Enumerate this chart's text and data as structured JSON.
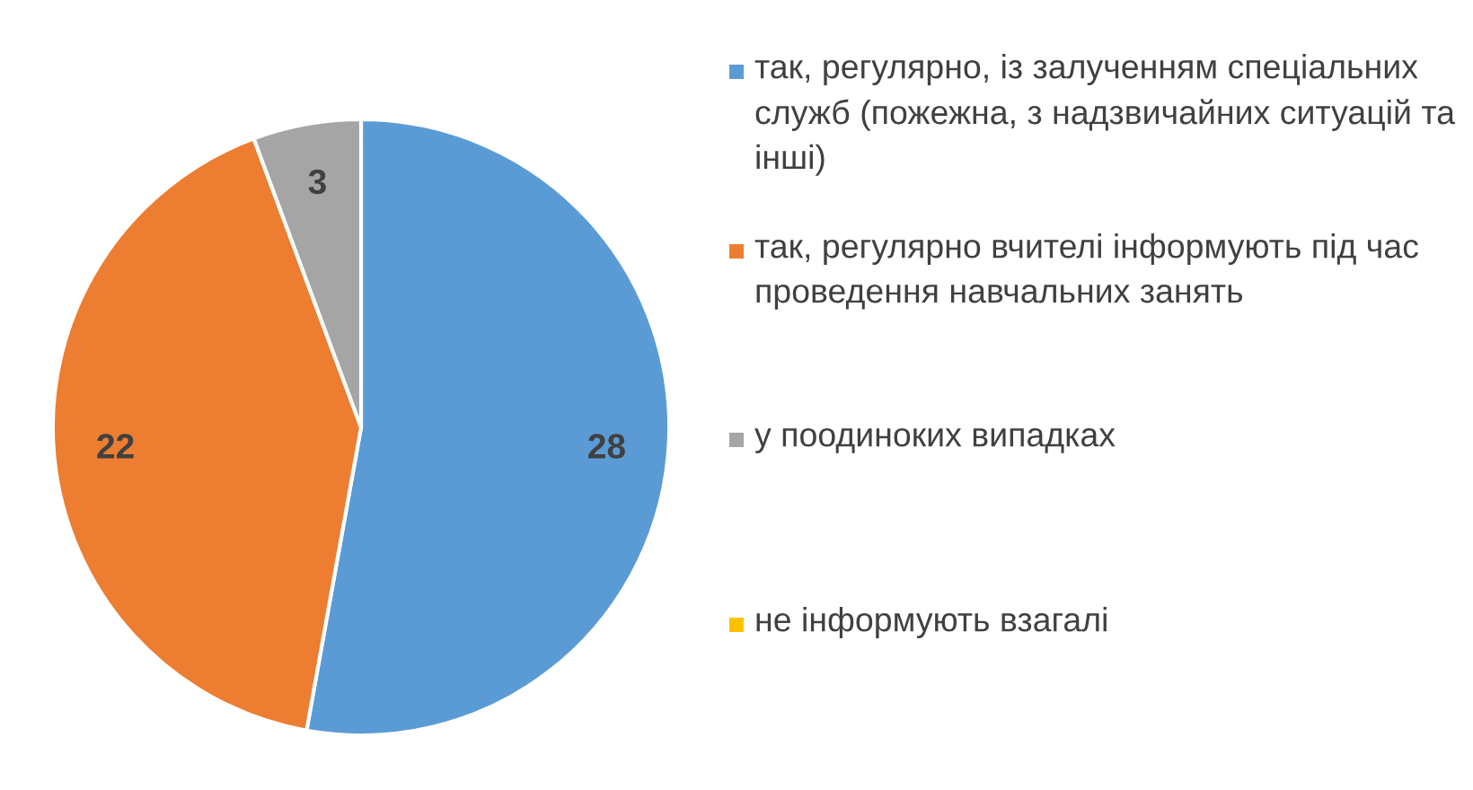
{
  "chart_data": {
    "type": "pie",
    "categories": [
      "так, регулярно, із залученням спеціальних служб (пожежна, з надзвичайних ситуацій та інші)",
      "так, регулярно вчителі інформують під час проведення навчальних занять",
      "у поодиноких випадках",
      "не інформують взагалі"
    ],
    "values": [
      28,
      22,
      3,
      0
    ],
    "colors": [
      "#5b9bd5",
      "#ed7d31",
      "#a5a5a5",
      "#ffc000"
    ],
    "value_labels": [
      "28",
      "22",
      "3",
      null
    ],
    "legend": "right"
  }
}
